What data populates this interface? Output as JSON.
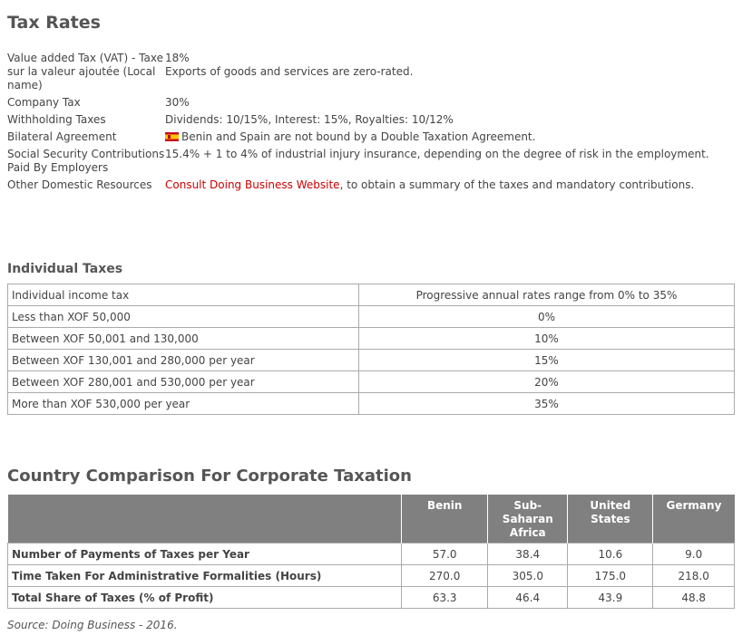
{
  "title": "Tax Rates",
  "info_rows": [
    {
      "key": "Value added Tax (VAT) - Taxe sur la valeur ajoutée (Local name)",
      "value_line1": "18%",
      "value_line2": "Exports of goods and services are zero-rated."
    },
    {
      "key": "Company Tax",
      "value": "30%"
    },
    {
      "key": "Withholding Taxes",
      "value": "Dividends: 10/15%, Interest: 15%, Royalties: 10/12%"
    },
    {
      "key": "Bilateral Agreement",
      "value": "Benin and Spain are not bound by a Double Taxation Agreement.",
      "icon": "spain-flag-icon"
    },
    {
      "key": "Social Security Contributions Paid By Employers",
      "value": "15.4% + 1 to 4% of industrial injury insurance, depending on the degree of risk in the employment."
    },
    {
      "key": "Other Domestic Resources",
      "link": "Consult Doing Business Website",
      "value": ", to obtain a summary of the taxes and mandatory contributions."
    }
  ],
  "individual": {
    "title": "Individual Taxes",
    "rows": [
      {
        "label": "Individual income tax",
        "value": "Progressive annual rates range from 0% to 35%"
      },
      {
        "label": "Less than XOF 50,000",
        "value": "0%"
      },
      {
        "label": "Between XOF 50,001 and 130,000",
        "value": "10%"
      },
      {
        "label": "Between XOF 130,001 and 280,000 per year",
        "value": "15%"
      },
      {
        "label": "Between XOF 280,001 and 530,000 per year",
        "value": "20%"
      },
      {
        "label": "More than XOF 530,000 per year",
        "value": "35%"
      }
    ]
  },
  "comparison": {
    "title": "Country Comparison For Corporate Taxation",
    "columns": [
      "Benin",
      "Sub-Saharan Africa",
      "United States",
      "Germany"
    ],
    "rows": [
      {
        "label": "Number of Payments of Taxes per Year",
        "values": [
          "57.0",
          "38.4",
          "10.6",
          "9.0"
        ]
      },
      {
        "label": "Time Taken For Administrative Formalities (Hours)",
        "values": [
          "270.0",
          "305.0",
          "175.0",
          "218.0"
        ]
      },
      {
        "label": "Total Share of Taxes (% of Profit)",
        "values": [
          "63.3",
          "46.4",
          "43.9",
          "48.8"
        ]
      }
    ],
    "source": "Source: Doing Business - 2016."
  },
  "colors": {
    "header_bg": "#808080",
    "link": "#cc0000"
  }
}
